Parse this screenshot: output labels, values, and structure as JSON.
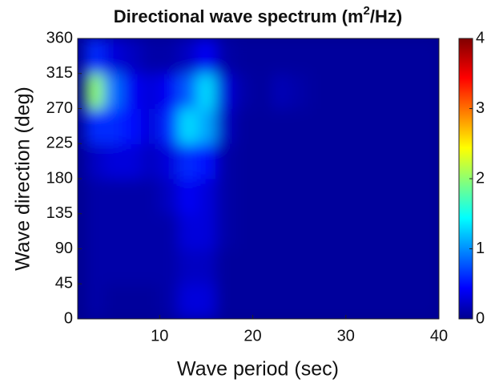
{
  "chart_data": {
    "type": "heatmap",
    "title": [
      "Directional wave spectrum (m",
      "2",
      "/Hz)"
    ],
    "x_label": "Wave period (sec)",
    "y_label": "Wave direction (deg)",
    "x": [
      3,
      5,
      7,
      9,
      11,
      13,
      15,
      17,
      19,
      21,
      23,
      25,
      27,
      29,
      31,
      33,
      35,
      37,
      39
    ],
    "y": [
      22.5,
      67.5,
      112.5,
      157.5,
      202.5,
      247.5,
      292.5,
      337.5
    ],
    "z": [
      [
        0.1,
        0.05,
        0.05,
        0.05,
        0.1,
        0.3,
        0.3,
        0.05,
        0.05,
        0.05,
        0.05,
        0.05,
        0.05,
        0.05,
        0.05,
        0.05,
        0.05,
        0.05,
        0.05
      ],
      [
        0.1,
        0.1,
        0.1,
        0.1,
        0.1,
        0.2,
        0.2,
        0.05,
        0.05,
        0.05,
        0.05,
        0.05,
        0.05,
        0.05,
        0.05,
        0.05,
        0.05,
        0.05,
        0.05
      ],
      [
        0.1,
        0.1,
        0.1,
        0.1,
        0.1,
        0.3,
        0.3,
        0.1,
        0.05,
        0.05,
        0.05,
        0.05,
        0.05,
        0.05,
        0.05,
        0.05,
        0.05,
        0.05,
        0.05
      ],
      [
        0.1,
        0.1,
        0.1,
        0.1,
        0.2,
        0.4,
        0.3,
        0.1,
        0.05,
        0.05,
        0.05,
        0.05,
        0.05,
        0.05,
        0.05,
        0.05,
        0.05,
        0.05,
        0.05
      ],
      [
        0.2,
        0.3,
        0.3,
        0.2,
        0.3,
        0.6,
        0.5,
        0.1,
        0.05,
        0.05,
        0.05,
        0.05,
        0.05,
        0.05,
        0.05,
        0.05,
        0.05,
        0.05,
        0.05
      ],
      [
        0.6,
        0.6,
        0.5,
        0.3,
        0.6,
        1.3,
        1.1,
        0.2,
        0.05,
        0.05,
        0.05,
        0.05,
        0.05,
        0.05,
        0.05,
        0.05,
        0.05,
        0.05,
        0.05
      ],
      [
        2.0,
        0.9,
        0.4,
        0.3,
        0.4,
        0.8,
        1.3,
        0.3,
        0.1,
        0.05,
        0.15,
        0.1,
        0.05,
        0.05,
        0.05,
        0.05,
        0.05,
        0.05,
        0.05
      ],
      [
        0.6,
        0.3,
        0.2,
        0.1,
        0.1,
        0.2,
        0.4,
        0.1,
        0.05,
        0.05,
        0.05,
        0.05,
        0.05,
        0.05,
        0.05,
        0.05,
        0.05,
        0.05,
        0.05
      ]
    ],
    "xlim": [
      1.2,
      40
    ],
    "xticks": [
      10,
      20,
      30,
      40
    ],
    "ylim": [
      0,
      360
    ],
    "yticks": [
      0,
      45,
      90,
      135,
      180,
      225,
      270,
      315,
      360
    ],
    "zlim": [
      0,
      4
    ],
    "zticks": [
      0,
      1,
      2,
      3,
      4
    ],
    "colormap": "jet"
  }
}
